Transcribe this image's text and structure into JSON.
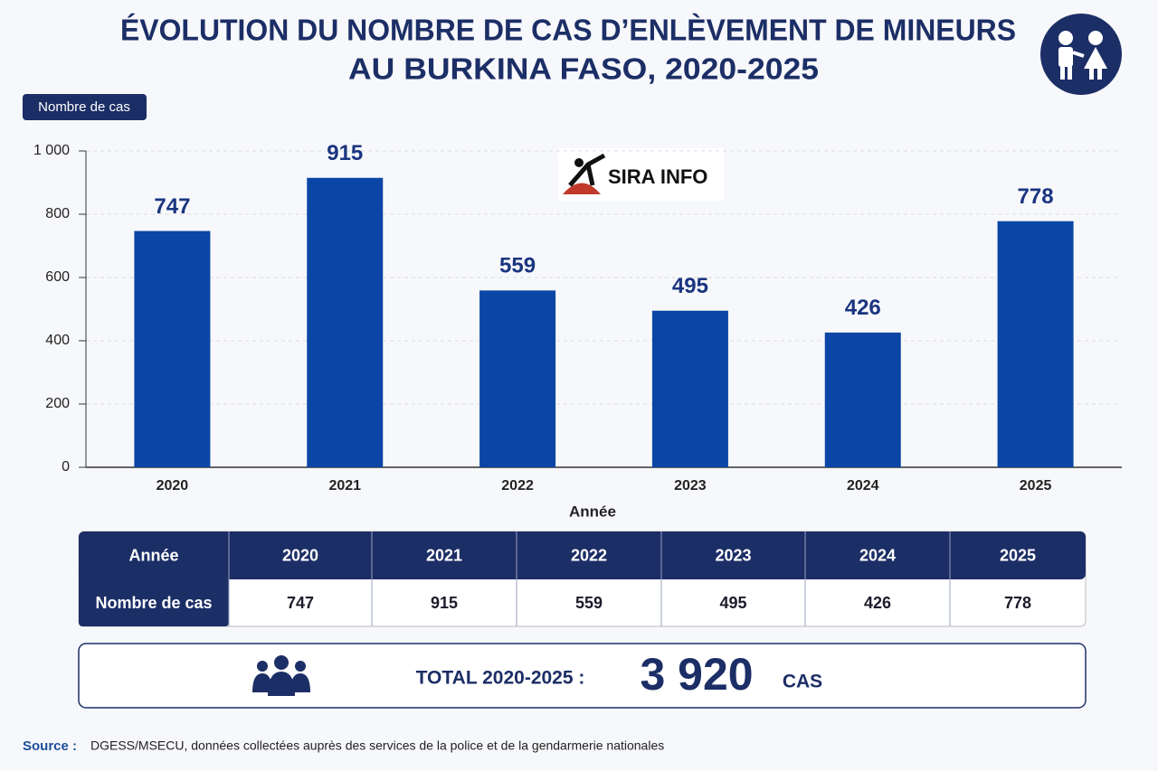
{
  "chart_data": {
    "type": "bar",
    "title": [
      "ÉVOLUTION DU NOMBRE DE CAS D’ENLÈVEMENT DE MINEURS",
      "AU BURKINA FASO, 2020-2025"
    ],
    "y_label": "Nombre de cas",
    "x_label": "Année",
    "categories": [
      "2020",
      "2021",
      "2022",
      "2023",
      "2024",
      "2025"
    ],
    "values": [
      747,
      915,
      559,
      495,
      426,
      778
    ],
    "color": "#0b46a6",
    "ylim": [
      0,
      1000
    ],
    "yticks": [
      0,
      200,
      400,
      600,
      800,
      {
        "value": 1000,
        "label": "1 000"
      }
    ],
    "grid": true,
    "watermark": "SIRA INFO"
  },
  "table": {
    "header": [
      "Année",
      "2020",
      "2021",
      "2022",
      "2023",
      "2024",
      "2025"
    ],
    "rows": [
      [
        "Nombre de cas",
        "747",
        "915",
        "559",
        "495",
        "426",
        "778"
      ]
    ]
  },
  "total": {
    "label": "TOTAL 2020-2025 :",
    "value": "3 920",
    "unit": "CAS"
  },
  "source": {
    "label": "Source :",
    "text": "DGESS/MSECU, données collectées auprès des services de la police et de la gendarmerie nationales"
  }
}
